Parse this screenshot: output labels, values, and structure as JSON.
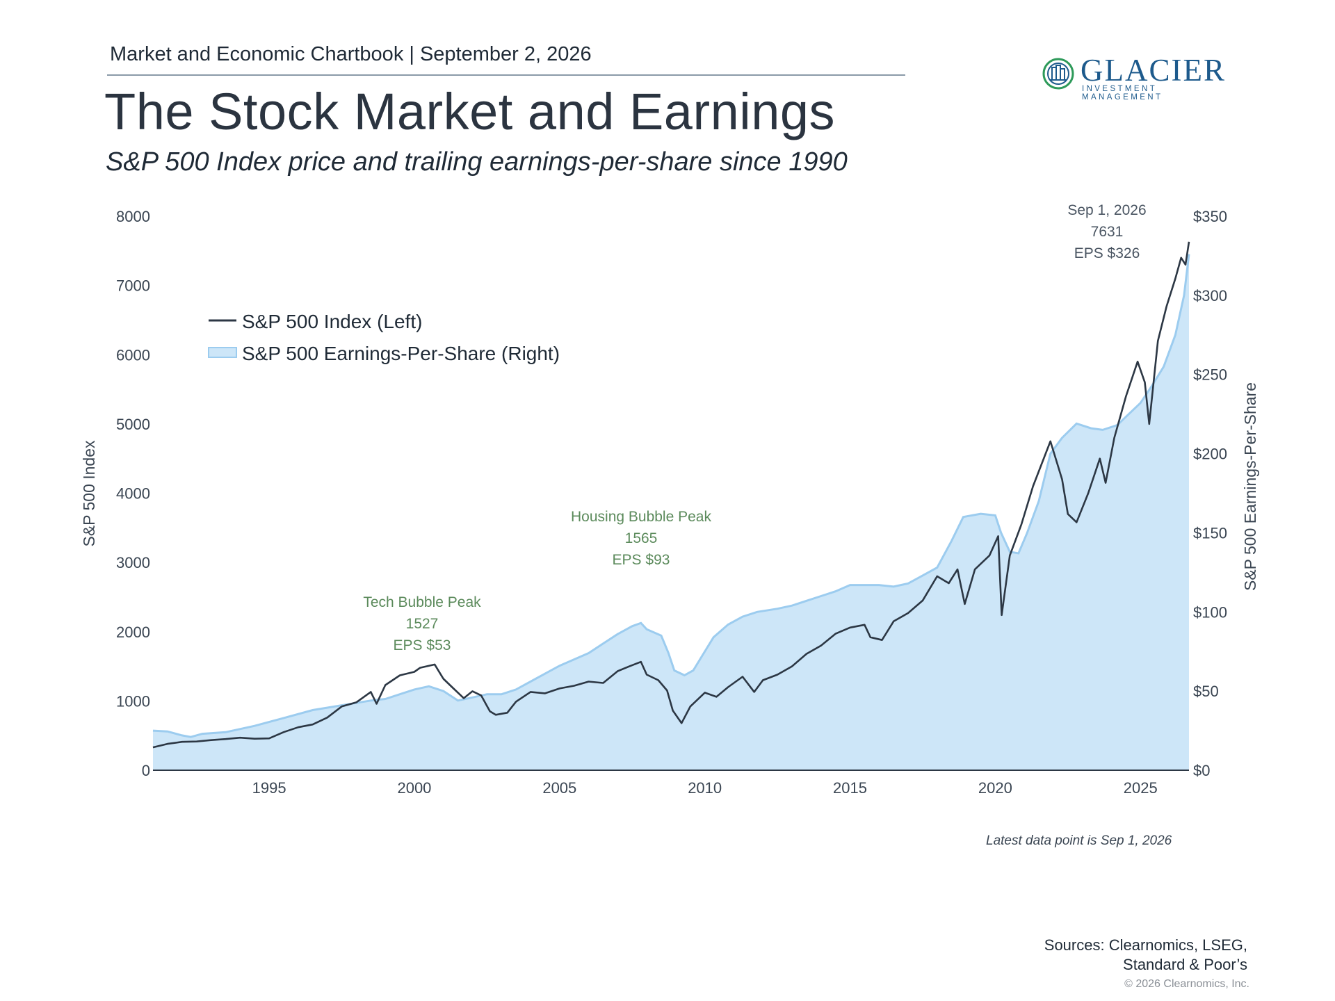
{
  "header": {
    "chartbook": "Market and Economic Chartbook | September 2, 2026",
    "title": "The Stock Market and Earnings",
    "subtitle": "S&P 500 Index price and trailing earnings-per-share since 1990"
  },
  "logo": {
    "name": "GLACIER",
    "tagline": "INVESTMENT MANAGEMENT",
    "icon": "glacier-building-icon",
    "color": "#1d5a8c",
    "ring_color": "#2e9a5a"
  },
  "colors": {
    "index_line": "#2c3744",
    "eps_fill": "#cde6f8",
    "eps_edge": "#9cccef",
    "annotation_green": "#5b8a5b",
    "annotation_dark": "#4a5562"
  },
  "chart_data": {
    "type": "area",
    "x_label": "",
    "x_ticks": [
      "1995",
      "2000",
      "2005",
      "2010",
      "2015",
      "2020",
      "2025"
    ],
    "xlim": [
      1991.0,
      2026.67
    ],
    "left_axis": {
      "label": "S&P 500 Index",
      "ticks": [
        "0",
        "1000",
        "2000",
        "3000",
        "4000",
        "5000",
        "6000",
        "7000",
        "8000"
      ],
      "ylim": [
        0,
        8000
      ]
    },
    "right_axis": {
      "label": "S&P 500 Earnings-Per-Share",
      "ticks": [
        "$0",
        "$50",
        "$100",
        "$150",
        "$200",
        "$250",
        "$300",
        "$350"
      ],
      "ylim": [
        0,
        350
      ]
    },
    "legend": {
      "placement": "upper-left",
      "entries": [
        "S&P 500 Index (Left)",
        "S&P 500 Earnings-Per-Share (Right)"
      ]
    },
    "series": [
      {
        "name": "S&P 500 Index (Left)",
        "axis": "left",
        "points": [
          [
            1991.0,
            330
          ],
          [
            1991.5,
            380
          ],
          [
            1992.0,
            410
          ],
          [
            1992.5,
            415
          ],
          [
            1993.0,
            435
          ],
          [
            1993.5,
            450
          ],
          [
            1994.0,
            470
          ],
          [
            1994.5,
            455
          ],
          [
            1995.0,
            460
          ],
          [
            1995.5,
            550
          ],
          [
            1996.0,
            620
          ],
          [
            1996.5,
            660
          ],
          [
            1997.0,
            760
          ],
          [
            1997.5,
            920
          ],
          [
            1998.0,
            980
          ],
          [
            1998.5,
            1130
          ],
          [
            1998.7,
            960
          ],
          [
            1999.0,
            1230
          ],
          [
            1999.5,
            1370
          ],
          [
            2000.0,
            1420
          ],
          [
            2000.2,
            1480
          ],
          [
            2000.7,
            1527
          ],
          [
            2001.0,
            1320
          ],
          [
            2001.3,
            1200
          ],
          [
            2001.7,
            1040
          ],
          [
            2002.0,
            1140
          ],
          [
            2002.3,
            1080
          ],
          [
            2002.6,
            850
          ],
          [
            2002.8,
            800
          ],
          [
            2003.2,
            830
          ],
          [
            2003.5,
            990
          ],
          [
            2004.0,
            1130
          ],
          [
            2004.5,
            1110
          ],
          [
            2005.0,
            1180
          ],
          [
            2005.5,
            1220
          ],
          [
            2006.0,
            1280
          ],
          [
            2006.5,
            1260
          ],
          [
            2007.0,
            1430
          ],
          [
            2007.4,
            1500
          ],
          [
            2007.8,
            1565
          ],
          [
            2008.0,
            1380
          ],
          [
            2008.4,
            1300
          ],
          [
            2008.7,
            1150
          ],
          [
            2008.9,
            860
          ],
          [
            2009.2,
            680
          ],
          [
            2009.5,
            920
          ],
          [
            2010.0,
            1120
          ],
          [
            2010.4,
            1060
          ],
          [
            2010.8,
            1200
          ],
          [
            2011.3,
            1350
          ],
          [
            2011.7,
            1130
          ],
          [
            2012.0,
            1300
          ],
          [
            2012.5,
            1380
          ],
          [
            2013.0,
            1500
          ],
          [
            2013.5,
            1680
          ],
          [
            2014.0,
            1800
          ],
          [
            2014.5,
            1970
          ],
          [
            2015.0,
            2060
          ],
          [
            2015.5,
            2100
          ],
          [
            2015.7,
            1920
          ],
          [
            2016.1,
            1880
          ],
          [
            2016.5,
            2150
          ],
          [
            2017.0,
            2270
          ],
          [
            2017.5,
            2450
          ],
          [
            2018.0,
            2800
          ],
          [
            2018.4,
            2700
          ],
          [
            2018.7,
            2900
          ],
          [
            2018.95,
            2400
          ],
          [
            2019.3,
            2900
          ],
          [
            2019.8,
            3100
          ],
          [
            2020.1,
            3380
          ],
          [
            2020.22,
            2240
          ],
          [
            2020.5,
            3100
          ],
          [
            2020.9,
            3550
          ],
          [
            2021.3,
            4100
          ],
          [
            2021.9,
            4750
          ],
          [
            2022.3,
            4200
          ],
          [
            2022.5,
            3700
          ],
          [
            2022.8,
            3580
          ],
          [
            2023.2,
            4000
          ],
          [
            2023.6,
            4500
          ],
          [
            2023.8,
            4150
          ],
          [
            2024.1,
            4800
          ],
          [
            2024.5,
            5400
          ],
          [
            2024.9,
            5900
          ],
          [
            2025.15,
            5600
          ],
          [
            2025.3,
            5000
          ],
          [
            2025.6,
            6200
          ],
          [
            2025.9,
            6700
          ],
          [
            2026.2,
            7100
          ],
          [
            2026.4,
            7400
          ],
          [
            2026.55,
            7300
          ],
          [
            2026.67,
            7631
          ]
        ]
      },
      {
        "name": "S&P 500 Earnings-Per-Share (Right)",
        "axis": "right",
        "points": [
          [
            1991.0,
            25
          ],
          [
            1991.5,
            24.5
          ],
          [
            1992.0,
            22
          ],
          [
            1992.3,
            21
          ],
          [
            1992.7,
            23
          ],
          [
            1993.5,
            24
          ],
          [
            1994.5,
            28
          ],
          [
            1995.5,
            33
          ],
          [
            1996.5,
            38
          ],
          [
            1997.5,
            41
          ],
          [
            1998.5,
            44
          ],
          [
            1999.0,
            45
          ],
          [
            1999.5,
            48
          ],
          [
            2000.0,
            51
          ],
          [
            2000.5,
            53
          ],
          [
            2001.0,
            50
          ],
          [
            2001.5,
            44
          ],
          [
            2002.0,
            46
          ],
          [
            2002.5,
            48
          ],
          [
            2003.0,
            48
          ],
          [
            2003.5,
            51
          ],
          [
            2004.0,
            56
          ],
          [
            2004.5,
            61
          ],
          [
            2005.0,
            66
          ],
          [
            2005.5,
            70
          ],
          [
            2006.0,
            74
          ],
          [
            2006.5,
            80
          ],
          [
            2007.0,
            86
          ],
          [
            2007.5,
            91
          ],
          [
            2007.8,
            93
          ],
          [
            2008.0,
            89
          ],
          [
            2008.5,
            85
          ],
          [
            2008.75,
            74
          ],
          [
            2008.95,
            63
          ],
          [
            2009.3,
            60
          ],
          [
            2009.6,
            63
          ],
          [
            2009.9,
            72
          ],
          [
            2010.3,
            84
          ],
          [
            2010.8,
            92
          ],
          [
            2011.3,
            97
          ],
          [
            2011.8,
            100
          ],
          [
            2012.5,
            102
          ],
          [
            2013.0,
            104
          ],
          [
            2013.5,
            107
          ],
          [
            2014.0,
            110
          ],
          [
            2014.5,
            113
          ],
          [
            2015.0,
            117
          ],
          [
            2015.5,
            117
          ],
          [
            2016.0,
            117
          ],
          [
            2016.5,
            116
          ],
          [
            2017.0,
            118
          ],
          [
            2017.5,
            123
          ],
          [
            2018.0,
            128
          ],
          [
            2018.5,
            145
          ],
          [
            2018.9,
            160
          ],
          [
            2019.5,
            162
          ],
          [
            2020.0,
            161
          ],
          [
            2020.2,
            150
          ],
          [
            2020.5,
            138
          ],
          [
            2020.8,
            137
          ],
          [
            2021.1,
            150
          ],
          [
            2021.5,
            170
          ],
          [
            2021.9,
            200
          ],
          [
            2022.3,
            210
          ],
          [
            2022.8,
            219
          ],
          [
            2023.3,
            216
          ],
          [
            2023.7,
            215
          ],
          [
            2024.2,
            218
          ],
          [
            2024.6,
            225
          ],
          [
            2025.0,
            232
          ],
          [
            2025.4,
            243
          ],
          [
            2025.8,
            255
          ],
          [
            2026.2,
            275
          ],
          [
            2026.5,
            300
          ],
          [
            2026.67,
            326
          ]
        ]
      }
    ],
    "annotations": [
      {
        "lines": [
          "Tech Bubble Peak",
          "1527",
          "EPS $53"
        ],
        "x": 2000.25,
        "color": "green"
      },
      {
        "lines": [
          "Housing Bubble Peak",
          "1565",
          "EPS $93"
        ],
        "x": 2007.8,
        "color": "green"
      },
      {
        "lines": [
          "Sep 1, 2026",
          "7631",
          "EPS $326"
        ],
        "x": 2026.0,
        "color": "dark"
      }
    ]
  },
  "footer": {
    "latest": "Latest data point is Sep 1, 2026",
    "sources_line1": "Sources: Clearnomics, LSEG,",
    "sources_line2": "Standard & Poor’s",
    "copyright": "© 2026 Clearnomics, Inc."
  }
}
